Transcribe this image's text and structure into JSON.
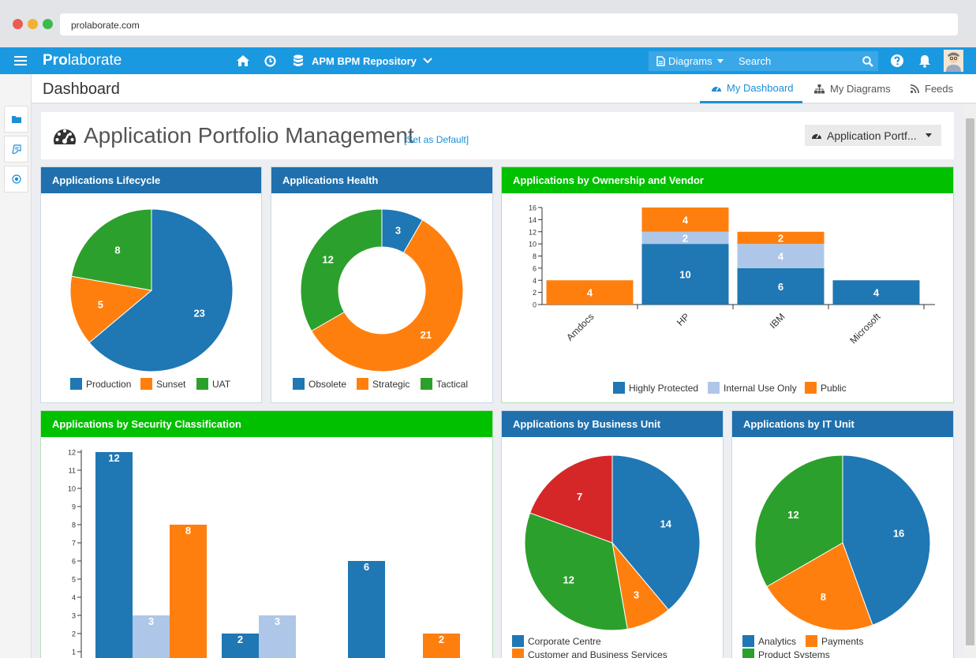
{
  "browser": {
    "url": "prolaborate.com"
  },
  "app": {
    "logo_bold": "Pro",
    "logo_rest": "laborate",
    "repository": "APM BPM Repository",
    "diagrams_label": "Diagrams",
    "search_placeholder": "Search"
  },
  "header": {
    "title": "Dashboard",
    "tabs": [
      {
        "label": "My Dashboard",
        "active": true
      },
      {
        "label": "My Diagrams",
        "active": false
      },
      {
        "label": "Feeds",
        "active": false
      }
    ]
  },
  "dashboard": {
    "title": "Application Portfolio Management",
    "set_default": "[Set as Default]",
    "selector": "Application Portf..."
  },
  "colors": {
    "blue": "#1f77b4",
    "orange": "#ff7f0e",
    "green": "#2ca02c",
    "red": "#d62728",
    "light_blue": "#aec7e8",
    "header_blue": "#1f70ac",
    "header_green": "#00c000",
    "nav_blue": "#1b99e0"
  },
  "panels": {
    "lifecycle": "Applications Lifecycle",
    "health": "Applications Health",
    "ownership": "Applications by Ownership and Vendor",
    "security": "Applications by Security Classification",
    "business": "Applications by Business Unit",
    "itunit": "Applications by IT Unit"
  },
  "chart_data": [
    {
      "type": "pie",
      "title": "Applications Lifecycle",
      "categories": [
        "Production",
        "Sunset",
        "UAT"
      ],
      "values": [
        23,
        5,
        8
      ],
      "colors": [
        "#1f77b4",
        "#ff7f0e",
        "#2ca02c"
      ],
      "legend": "bottom"
    },
    {
      "type": "pie",
      "title": "Applications Health",
      "donut": true,
      "categories": [
        "Obsolete",
        "Strategic",
        "Tactical"
      ],
      "values": [
        3,
        21,
        12
      ],
      "colors": [
        "#1f77b4",
        "#ff7f0e",
        "#2ca02c"
      ],
      "legend": "bottom"
    },
    {
      "type": "bar",
      "stacked": true,
      "title": "Applications by Ownership and Vendor",
      "categories": [
        "Amdocs",
        "HP",
        "IBM",
        "Microsoft"
      ],
      "series": [
        {
          "name": "Highly Protected",
          "values": [
            0,
            10,
            6,
            4
          ],
          "color": "#1f77b4"
        },
        {
          "name": "Internal Use Only",
          "values": [
            0,
            2,
            4,
            0
          ],
          "color": "#aec7e8"
        },
        {
          "name": "Public",
          "values": [
            4,
            4,
            2,
            0
          ],
          "color": "#ff7f0e"
        }
      ],
      "ylim": [
        0,
        16
      ],
      "yticks": [
        0,
        2,
        4,
        6,
        8,
        10,
        12,
        14,
        16
      ],
      "legend": "bottom"
    },
    {
      "type": "bar",
      "title": "Applications by Security Classification",
      "ylim": [
        0,
        12
      ],
      "yticks": [
        1,
        2,
        3,
        4,
        5,
        6,
        7,
        8,
        9,
        10,
        11,
        12
      ],
      "bars": [
        {
          "value": 12,
          "color": "#1f77b4"
        },
        {
          "value": 3,
          "color": "#aec7e8"
        },
        {
          "value": 8,
          "color": "#ff7f0e"
        },
        {
          "value": 2,
          "color": "#1f77b4"
        },
        {
          "value": 3,
          "color": "#aec7e8"
        },
        {
          "value": 6,
          "color": "#1f77b4"
        },
        {
          "value": 2,
          "color": "#ff7f0e"
        }
      ]
    },
    {
      "type": "pie",
      "title": "Applications by Business Unit",
      "slices": [
        {
          "value": 14,
          "color": "#1f77b4"
        },
        {
          "value": 3,
          "color": "#ff7f0e"
        },
        {
          "value": 12,
          "color": "#2ca02c"
        },
        {
          "value": 7,
          "color": "#d62728"
        }
      ],
      "legend_items": [
        {
          "label": "Corporate Centre",
          "color": "#1f77b4"
        },
        {
          "label": "Customer and Business Services",
          "color": "#ff7f0e"
        }
      ]
    },
    {
      "type": "pie",
      "title": "Applications by IT Unit",
      "slices": [
        {
          "value": 16,
          "color": "#1f77b4"
        },
        {
          "value": 8,
          "color": "#ff7f0e"
        },
        {
          "value": 12,
          "color": "#2ca02c"
        }
      ],
      "legend_items": [
        {
          "label": "Analytics",
          "color": "#1f77b4"
        },
        {
          "label": "Payments",
          "color": "#ff7f0e"
        },
        {
          "label": "Product Systems",
          "color": "#2ca02c"
        }
      ]
    }
  ]
}
